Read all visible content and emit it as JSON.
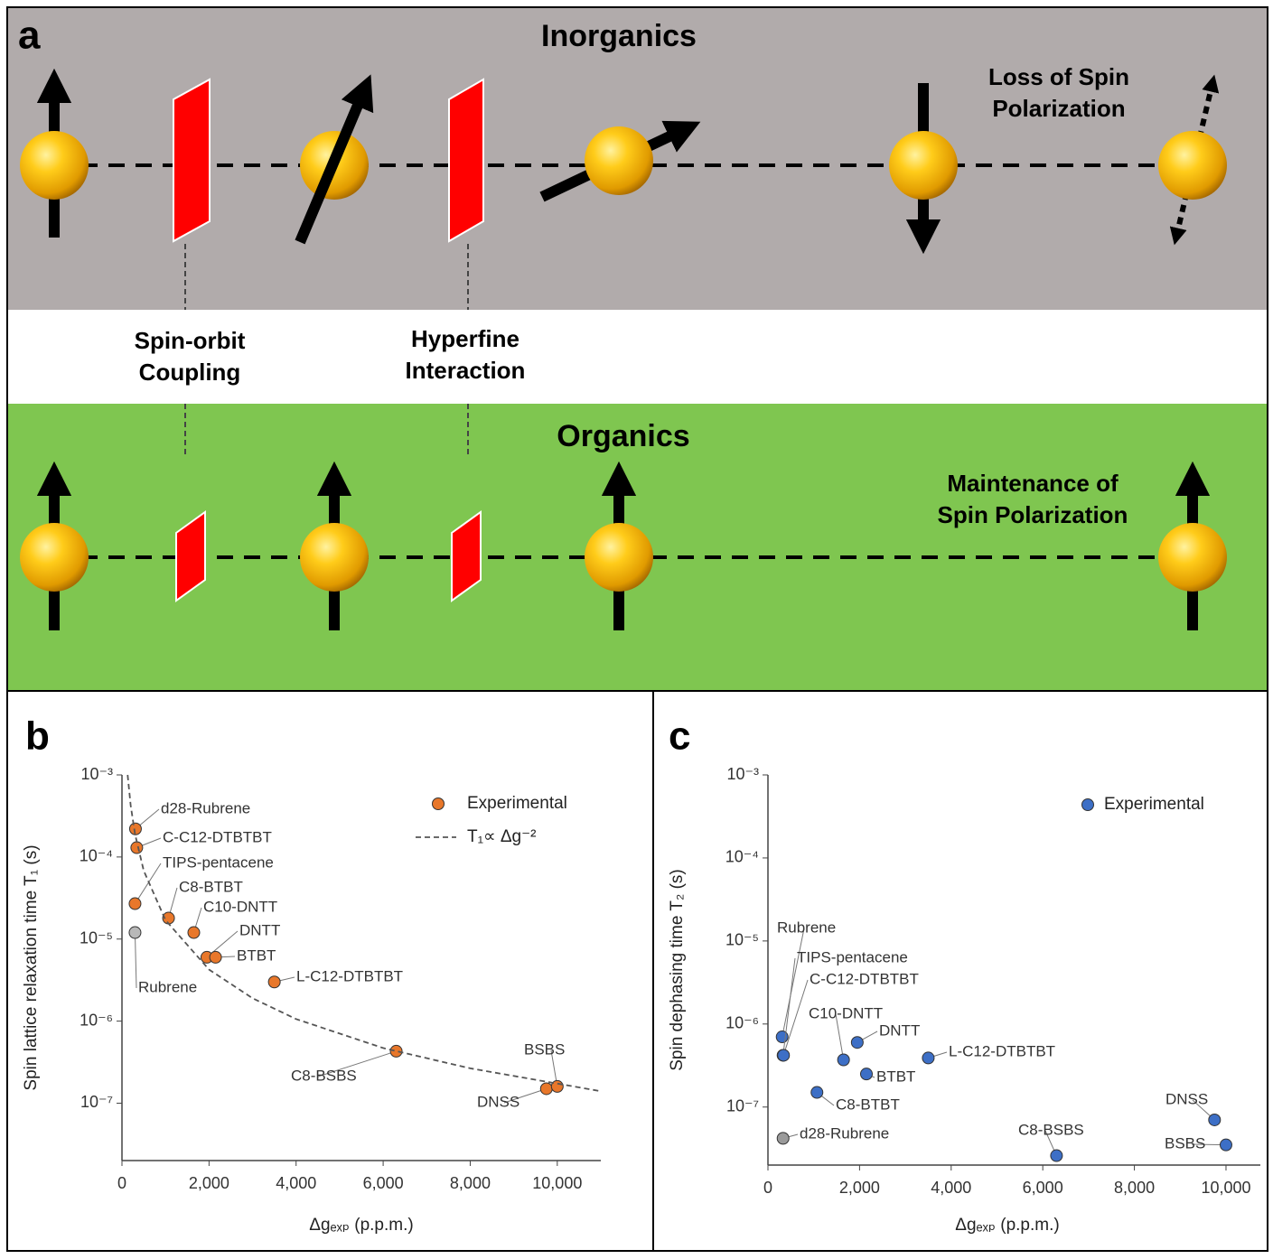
{
  "panel_a": {
    "label": "a",
    "top_title": "Inorganics",
    "top_note": [
      "Loss of Spin",
      "Polarization"
    ],
    "mechanisms": [
      [
        "Spin-orbit",
        "Coupling"
      ],
      [
        "Hyperfine",
        "Interaction"
      ]
    ],
    "bottom_title": "Organics",
    "bottom_note": [
      "Maintenance of",
      "Spin Polarization"
    ]
  },
  "chart_data": [
    {
      "type": "scatter",
      "panel_label": "b",
      "x_label": "Δgₑₓₚ (p.p.m.)",
      "y_label": "Spin lattice relaxation time T₁ (s)",
      "log_y": true,
      "xlim": [
        0,
        11000
      ],
      "ylim": [
        2e-08,
        0.001
      ],
      "xticks": [
        0,
        {
          "value": 2000,
          "label": "2,000"
        },
        {
          "value": 4000,
          "label": "4,000"
        },
        {
          "value": 6000,
          "label": "6,000"
        },
        {
          "value": 8000,
          "label": "8,000"
        },
        {
          "value": 10000,
          "label": "10,000"
        }
      ],
      "yticks": [
        {
          "value": 1e-07,
          "label": "10⁻⁷"
        },
        {
          "value": 1e-06,
          "label": "10⁻⁶"
        },
        {
          "value": 1e-05,
          "label": "10⁻⁵"
        },
        {
          "value": 0.0001,
          "label": "10⁻⁴"
        },
        {
          "value": 0.001,
          "label": "10⁻³"
        }
      ],
      "legend": "upper right",
      "series": [
        {
          "name": "Experimental",
          "type": "scatter",
          "color": "#e8772a",
          "point_colors": [
            "#e8772a",
            "#e8772a",
            "#e8772a",
            "#b8b8b8",
            "#e8772a",
            "#e8772a",
            "#e8772a",
            "#e8772a",
            "#e8772a",
            "#e8772a",
            "#e8772a",
            "#e8772a"
          ],
          "labels": [
            "d28-Rubrene",
            "C-C12-DTBTBT",
            "TIPS-pentacene",
            "Rubrene",
            "C8-BTBT",
            "C10-DNTT",
            "DNTT",
            "BTBT",
            "L-C12-DTBTBT",
            "C8-BSBS",
            "DNSS",
            "BSBS"
          ],
          "x": [
            310,
            340,
            300,
            300,
            1070,
            1650,
            1950,
            2150,
            3500,
            6300,
            9750,
            10000
          ],
          "values": [
            0.00022,
            0.00013,
            2.7e-05,
            1.2e-05,
            1.8e-05,
            1.2e-05,
            6e-06,
            6e-06,
            3e-06,
            4.3e-07,
            1.5e-07,
            1.6e-07
          ]
        },
        {
          "name": "T₁∝ Δg⁻²",
          "type": "line",
          "color": "#555555",
          "x": [
            130,
            200,
            300,
            500,
            1000,
            2000,
            3000,
            4000,
            6000,
            8000,
            11000
          ],
          "values": [
            0.001,
            0.000425,
            0.00019,
            6.8e-05,
            1.7e-05,
            4.25e-06,
            1.9e-06,
            1.06e-06,
            4.7e-07,
            2.66e-07,
            1.4e-07
          ]
        }
      ]
    },
    {
      "type": "scatter",
      "panel_label": "c",
      "x_label": "Δgₑₓₚ (p.p.m.)",
      "y_label": "Spin dephasing time T₂ (s)",
      "log_y": true,
      "xlim": [
        0,
        10750
      ],
      "ylim": [
        2e-08,
        0.001
      ],
      "xticks": [
        0,
        {
          "value": 2000,
          "label": "2,000"
        },
        {
          "value": 4000,
          "label": "4,000"
        },
        {
          "value": 6000,
          "label": "6,000"
        },
        {
          "value": 8000,
          "label": "8,000"
        },
        {
          "value": 10000,
          "label": "10,000"
        }
      ],
      "yticks": [
        {
          "value": 1e-07,
          "label": "10⁻⁷"
        },
        {
          "value": 1e-06,
          "label": "10⁻⁶"
        },
        {
          "value": 1e-05,
          "label": "10⁻⁵"
        },
        {
          "value": 0.0001,
          "label": "10⁻⁴"
        },
        {
          "value": 0.001,
          "label": "10⁻³"
        }
      ],
      "legend": "upper right",
      "series": [
        {
          "name": "Experimental",
          "type": "scatter",
          "color": "#3d6fc6",
          "point_colors": [
            "#3d6fc6",
            "#3d6fc6",
            "#3d6fc6",
            "#3d6fc6",
            "#3d6fc6",
            "#3d6fc6",
            "#3d6fc6",
            "#3d6fc6",
            "#9a9a9a",
            "#3d6fc6",
            "#3d6fc6",
            "#3d6fc6"
          ],
          "labels": [
            "Rubrene",
            "TIPS-pentacene",
            "C-C12-DTBTBT",
            "C10-DNTT",
            "DNTT",
            "BTBT",
            "L-C12-DTBTBT",
            "C8-BTBT",
            "d28-Rubrene",
            "C8-BSBS",
            "DNSS",
            "BSBS"
          ],
          "x": [
            310,
            330,
            340,
            1650,
            1950,
            2150,
            3500,
            1070,
            330,
            6300,
            9750,
            10000
          ],
          "values": [
            7e-07,
            4.2e-07,
            4.2e-07,
            3.7e-07,
            6e-07,
            2.5e-07,
            3.9e-07,
            1.5e-07,
            4.2e-08,
            2.6e-08,
            7e-08,
            3.5e-08
          ]
        }
      ]
    }
  ]
}
